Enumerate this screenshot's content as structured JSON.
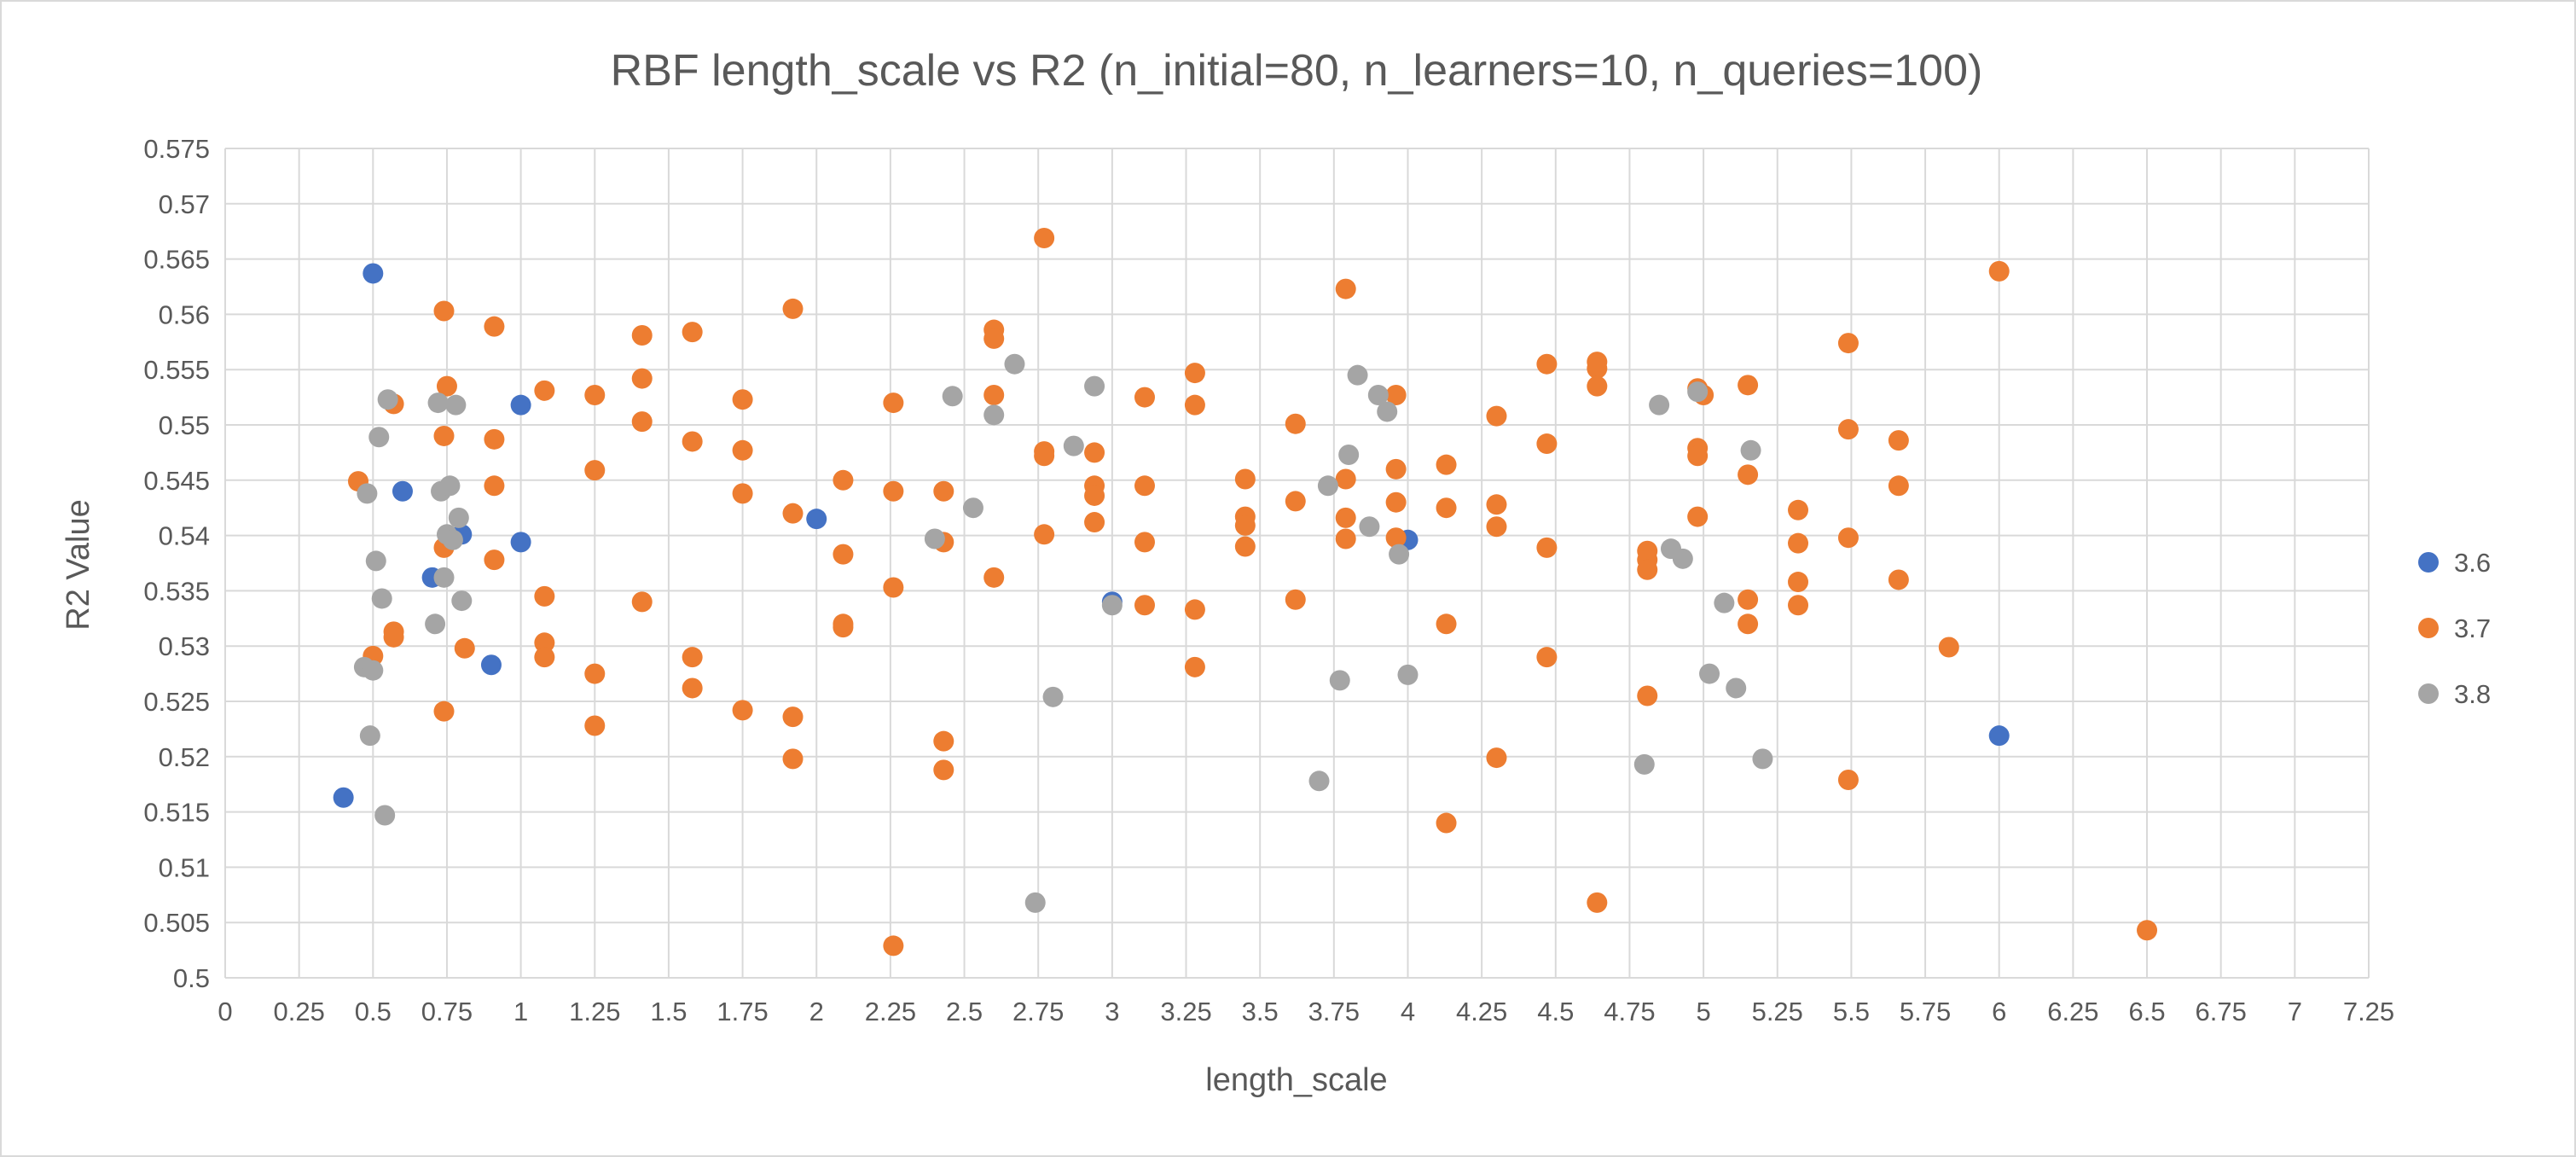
{
  "chart_data": {
    "type": "scatter",
    "title": "RBF length_scale vs R2 (n_initial=80, n_learners=10, n_queries=100)",
    "xlabel": "length_scale",
    "ylabel": "R2 Value",
    "xlim": [
      0,
      7.25
    ],
    "ylim": [
      0.5,
      0.575
    ],
    "x_ticks": [
      "0",
      "0.25",
      "0.5",
      "0.75",
      "1",
      "1.25",
      "1.5",
      "1.75",
      "2",
      "2.25",
      "2.5",
      "2.75",
      "3",
      "3.25",
      "3.5",
      "3.75",
      "4",
      "4.25",
      "4.5",
      "4.75",
      "5",
      "5.25",
      "5.5",
      "5.75",
      "6",
      "6.25",
      "6.5",
      "6.75",
      "7",
      "7.25"
    ],
    "y_ticks": [
      "0.5",
      "0.505",
      "0.51",
      "0.515",
      "0.52",
      "0.525",
      "0.53",
      "0.535",
      "0.54",
      "0.545",
      "0.55",
      "0.555",
      "0.56",
      "0.565",
      "0.57",
      "0.575"
    ],
    "grid": true,
    "legend_position": "right",
    "series": [
      {
        "name": "3.6",
        "color": "#4472C4",
        "points": [
          [
            0.4,
            0.5163
          ],
          [
            0.5,
            0.5637
          ],
          [
            0.6,
            0.544
          ],
          [
            0.7,
            0.5362
          ],
          [
            0.8,
            0.5401
          ],
          [
            0.9,
            0.5283
          ],
          [
            1.0,
            0.5518
          ],
          [
            1.0,
            0.5394
          ],
          [
            2.0,
            0.5415
          ],
          [
            3.0,
            0.534
          ],
          [
            4.0,
            0.5396
          ],
          [
            6.0,
            0.5219
          ]
        ]
      },
      {
        "name": "3.7",
        "color": "#ED7D31",
        "points": [
          [
            0.45,
            0.5449
          ],
          [
            0.5,
            0.5291
          ],
          [
            0.57,
            0.5519
          ],
          [
            0.57,
            0.5313
          ],
          [
            0.57,
            0.5308
          ],
          [
            0.74,
            0.5603
          ],
          [
            0.75,
            0.5535
          ],
          [
            0.74,
            0.549
          ],
          [
            0.74,
            0.5389
          ],
          [
            0.74,
            0.5241
          ],
          [
            0.81,
            0.5298
          ],
          [
            0.91,
            0.5589
          ],
          [
            0.91,
            0.5487
          ],
          [
            0.91,
            0.5445
          ],
          [
            0.91,
            0.5378
          ],
          [
            1.08,
            0.5531
          ],
          [
            1.08,
            0.5345
          ],
          [
            1.08,
            0.5303
          ],
          [
            1.08,
            0.529
          ],
          [
            1.25,
            0.5527
          ],
          [
            1.25,
            0.5459
          ],
          [
            1.25,
            0.5275
          ],
          [
            1.25,
            0.5228
          ],
          [
            1.41,
            0.5581
          ],
          [
            1.41,
            0.5542
          ],
          [
            1.41,
            0.5503
          ],
          [
            1.41,
            0.534
          ],
          [
            1.58,
            0.5584
          ],
          [
            1.58,
            0.5485
          ],
          [
            1.58,
            0.529
          ],
          [
            1.58,
            0.5262
          ],
          [
            1.75,
            0.5523
          ],
          [
            1.75,
            0.5477
          ],
          [
            1.75,
            0.5438
          ],
          [
            1.75,
            0.5242
          ],
          [
            1.92,
            0.5605
          ],
          [
            1.92,
            0.542
          ],
          [
            1.92,
            0.5236
          ],
          [
            1.92,
            0.5198
          ],
          [
            2.09,
            0.545
          ],
          [
            2.09,
            0.5383
          ],
          [
            2.09,
            0.532
          ],
          [
            2.09,
            0.5317
          ],
          [
            2.26,
            0.552
          ],
          [
            2.26,
            0.544
          ],
          [
            2.26,
            0.5353
          ],
          [
            2.26,
            0.5029
          ],
          [
            2.43,
            0.544
          ],
          [
            2.43,
            0.5394
          ],
          [
            2.43,
            0.5214
          ],
          [
            2.43,
            0.5188
          ],
          [
            2.6,
            0.5586
          ],
          [
            2.6,
            0.5578
          ],
          [
            2.6,
            0.5527
          ],
          [
            2.6,
            0.5362
          ],
          [
            2.77,
            0.5669
          ],
          [
            2.77,
            0.5476
          ],
          [
            2.77,
            0.5472
          ],
          [
            2.77,
            0.5401
          ],
          [
            2.94,
            0.5475
          ],
          [
            2.94,
            0.5445
          ],
          [
            2.94,
            0.5436
          ],
          [
            2.94,
            0.5412
          ],
          [
            3.11,
            0.5525
          ],
          [
            3.11,
            0.5445
          ],
          [
            3.11,
            0.5394
          ],
          [
            3.11,
            0.5337
          ],
          [
            3.28,
            0.5547
          ],
          [
            3.28,
            0.5518
          ],
          [
            3.28,
            0.5333
          ],
          [
            3.28,
            0.5281
          ],
          [
            3.45,
            0.5451
          ],
          [
            3.45,
            0.5417
          ],
          [
            3.45,
            0.5409
          ],
          [
            3.45,
            0.539
          ],
          [
            3.62,
            0.5501
          ],
          [
            3.62,
            0.5431
          ],
          [
            3.62,
            0.5342
          ],
          [
            3.79,
            0.5623
          ],
          [
            3.79,
            0.5451
          ],
          [
            3.79,
            0.5416
          ],
          [
            3.79,
            0.5397
          ],
          [
            3.96,
            0.5527
          ],
          [
            3.96,
            0.546
          ],
          [
            3.96,
            0.543
          ],
          [
            3.96,
            0.5398
          ],
          [
            4.13,
            0.5464
          ],
          [
            4.13,
            0.5425
          ],
          [
            4.13,
            0.532
          ],
          [
            4.13,
            0.514
          ],
          [
            4.3,
            0.5508
          ],
          [
            4.3,
            0.5428
          ],
          [
            4.3,
            0.5408
          ],
          [
            4.3,
            0.5199
          ],
          [
            4.47,
            0.5555
          ],
          [
            4.47,
            0.5483
          ],
          [
            4.47,
            0.5389
          ],
          [
            4.47,
            0.529
          ],
          [
            4.64,
            0.5557
          ],
          [
            4.64,
            0.5551
          ],
          [
            4.64,
            0.5535
          ],
          [
            4.64,
            0.5068
          ],
          [
            4.81,
            0.5386
          ],
          [
            4.81,
            0.5378
          ],
          [
            4.81,
            0.5369
          ],
          [
            4.81,
            0.5255
          ],
          [
            4.98,
            0.5533
          ],
          [
            4.98,
            0.5479
          ],
          [
            4.98,
            0.5472
          ],
          [
            4.98,
            0.5417
          ],
          [
            5.0,
            0.5527
          ],
          [
            5.15,
            0.5536
          ],
          [
            5.15,
            0.5455
          ],
          [
            5.15,
            0.5342
          ],
          [
            5.15,
            0.532
          ],
          [
            5.32,
            0.5423
          ],
          [
            5.32,
            0.5393
          ],
          [
            5.32,
            0.5358
          ],
          [
            5.32,
            0.5337
          ],
          [
            5.49,
            0.5574
          ],
          [
            5.49,
            0.5496
          ],
          [
            5.49,
            0.5398
          ],
          [
            5.49,
            0.5179
          ],
          [
            5.66,
            0.5486
          ],
          [
            5.66,
            0.5445
          ],
          [
            5.66,
            0.536
          ],
          [
            5.83,
            0.5299
          ],
          [
            6.0,
            0.5639
          ],
          [
            6.5,
            0.5043
          ]
        ]
      },
      {
        "name": "3.8",
        "color": "#A5A5A5",
        "points": [
          [
            0.47,
            0.5281
          ],
          [
            0.48,
            0.5438
          ],
          [
            0.49,
            0.5219
          ],
          [
            0.5,
            0.5278
          ],
          [
            0.51,
            0.5377
          ],
          [
            0.52,
            0.5489
          ],
          [
            0.53,
            0.5343
          ],
          [
            0.54,
            0.5147
          ],
          [
            0.55,
            0.5523
          ],
          [
            0.71,
            0.532
          ],
          [
            0.72,
            0.552
          ],
          [
            0.73,
            0.544
          ],
          [
            0.74,
            0.5362
          ],
          [
            0.75,
            0.5401
          ],
          [
            0.76,
            0.5445
          ],
          [
            0.77,
            0.5396
          ],
          [
            0.78,
            0.5518
          ],
          [
            0.79,
            0.5416
          ],
          [
            0.8,
            0.5341
          ],
          [
            2.4,
            0.5397
          ],
          [
            2.46,
            0.5526
          ],
          [
            2.53,
            0.5425
          ],
          [
            2.6,
            0.5509
          ],
          [
            2.67,
            0.5555
          ],
          [
            2.74,
            0.5068
          ],
          [
            2.8,
            0.5254
          ],
          [
            2.87,
            0.5481
          ],
          [
            2.94,
            0.5535
          ],
          [
            3.0,
            0.5337
          ],
          [
            3.7,
            0.5178
          ],
          [
            3.73,
            0.5445
          ],
          [
            3.77,
            0.5269
          ],
          [
            3.8,
            0.5473
          ],
          [
            3.83,
            0.5545
          ],
          [
            3.87,
            0.5408
          ],
          [
            3.9,
            0.5527
          ],
          [
            3.93,
            0.5512
          ],
          [
            3.97,
            0.5383
          ],
          [
            4.0,
            0.5274
          ],
          [
            4.8,
            0.5193
          ],
          [
            4.85,
            0.5518
          ],
          [
            4.89,
            0.5388
          ],
          [
            4.93,
            0.5379
          ],
          [
            4.98,
            0.553
          ],
          [
            5.02,
            0.5275
          ],
          [
            5.07,
            0.5339
          ],
          [
            5.11,
            0.5262
          ],
          [
            5.16,
            0.5477
          ],
          [
            5.2,
            0.5198
          ]
        ]
      }
    ]
  }
}
